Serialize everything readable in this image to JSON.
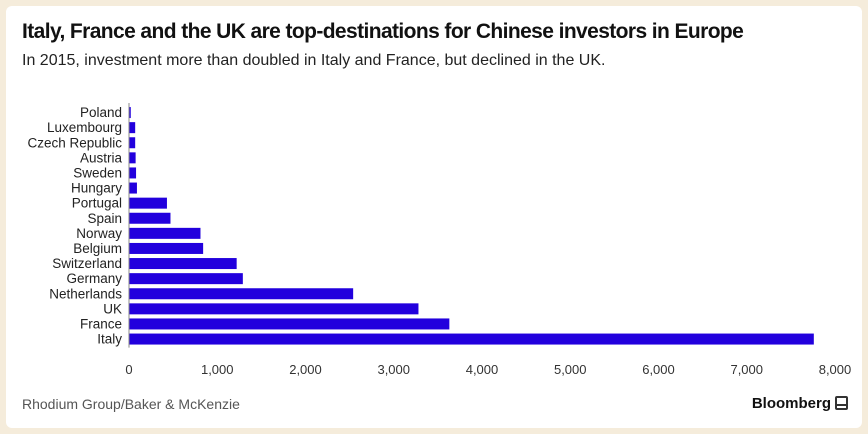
{
  "title": "Italy, France and the UK are top-destinations for Chinese investors in Europe",
  "subtitle": "In 2015, investment more than doubled in Italy and France, but declined in the UK.",
  "source": "Rhodium Group/Baker & McKenzie",
  "brand": "Bloomberg",
  "colors": {
    "bar": "#2200dd",
    "background": "#f5ecdb"
  },
  "chart_data": {
    "type": "bar",
    "orientation": "horizontal",
    "categories": [
      "Poland",
      "Luxembourg",
      "Czech Republic",
      "Austria",
      "Sweden",
      "Hungary",
      "Portugal",
      "Spain",
      "Norway",
      "Belgium",
      "Switzerland",
      "Germany",
      "Netherlands",
      "UK",
      "France",
      "Italy"
    ],
    "values": [
      20,
      70,
      70,
      75,
      80,
      90,
      430,
      470,
      810,
      840,
      1220,
      1290,
      2540,
      3280,
      3630,
      7760
    ],
    "xlim": [
      0,
      8000
    ],
    "xticks": [
      0,
      1000,
      2000,
      3000,
      4000,
      5000,
      6000,
      7000,
      8000
    ],
    "xtick_labels": [
      "0",
      "1,000",
      "2,000",
      "3,000",
      "4,000",
      "5,000",
      "6,000",
      "7,000",
      "8,000"
    ],
    "title": "Italy, France and the UK are top-destinations for Chinese investors in Europe",
    "xlabel": "",
    "ylabel": "",
    "grid": false,
    "legend": "none"
  }
}
